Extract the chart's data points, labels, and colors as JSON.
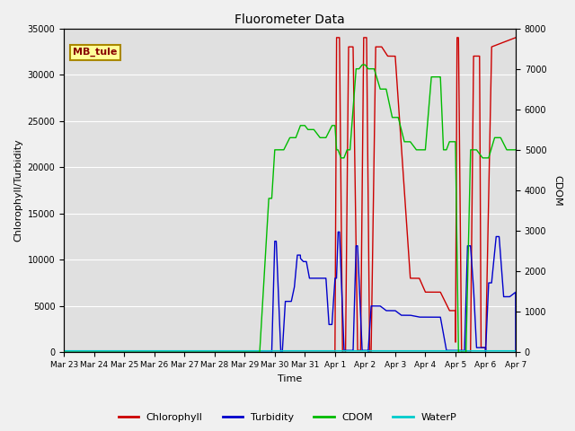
{
  "title": "Fluorometer Data",
  "ylabel_left": "Chlorophyll/Turbidity",
  "ylabel_right": "CDOM",
  "xlabel": "Time",
  "ylim_left": [
    0,
    35000
  ],
  "ylim_right": [
    0,
    8000
  ],
  "fig_facecolor": "#f0f0f0",
  "axes_facecolor": "#e0e0e0",
  "grid_color": "#ffffff",
  "annotation_text": "MB_tule",
  "annotation_bg": "#ffff99",
  "annotation_edge": "#aa8800",
  "colors": {
    "Chlorophyll": "#cc0000",
    "Turbidity": "#0000cc",
    "CDOM": "#00bb00",
    "WaterP": "#00cccc"
  },
  "xtick_labels": [
    "Mar 23",
    "Mar 24",
    "Mar 25",
    "Mar 26",
    "Mar 27",
    "Mar 28",
    "Mar 29",
    "Mar 30",
    "Mar 31",
    "Apr 1",
    "Apr 2",
    "Apr 3",
    "Apr 4",
    "Apr 5",
    "Apr 6",
    "Apr 7"
  ],
  "xtick_positions": [
    0,
    1,
    2,
    3,
    4,
    5,
    6,
    7,
    8,
    9,
    10,
    11,
    12,
    13,
    14,
    15
  ],
  "xlim": [
    0,
    15
  ]
}
